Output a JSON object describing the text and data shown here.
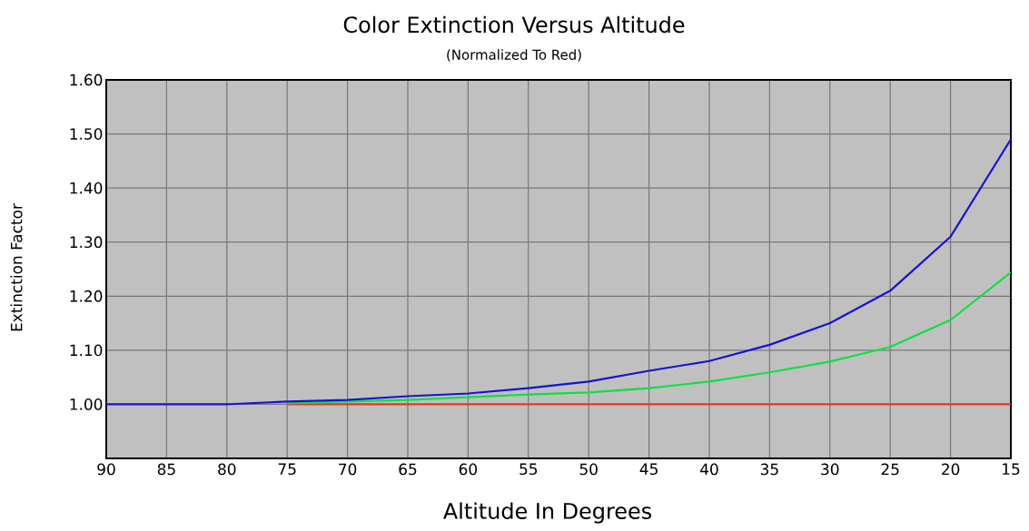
{
  "chart_data": {
    "type": "line",
    "title": "Color Extinction Versus Altitude",
    "subtitle": "(Normalized To Red)",
    "xlabel": "Altitude In Degrees",
    "ylabel": "Extinction Factor",
    "x": [
      90,
      85,
      80,
      75,
      70,
      65,
      60,
      55,
      50,
      45,
      40,
      35,
      30,
      25,
      20,
      15
    ],
    "series": [
      {
        "color": "#e83a20",
        "values": [
          null,
          null,
          null,
          1.0,
          1.0,
          1.0,
          1.0,
          1.0,
          1.0,
          1.0,
          1.0,
          1.0,
          1.0,
          1.0,
          1.0,
          1.0
        ]
      },
      {
        "color": "#10e040",
        "values": [
          null,
          null,
          null,
          1.002,
          1.005,
          1.008,
          1.013,
          1.018,
          1.022,
          1.03,
          1.042,
          1.059,
          1.079,
          1.106,
          1.156,
          1.244
        ]
      },
      {
        "color": "#1414d0",
        "values": [
          1.0,
          1.0,
          1.0,
          1.005,
          1.008,
          1.015,
          1.02,
          1.03,
          1.042,
          1.062,
          1.08,
          1.11,
          1.15,
          1.21,
          1.31,
          1.49
        ]
      }
    ],
    "xlim": [
      90,
      15
    ],
    "xticks": [
      90,
      85,
      80,
      75,
      70,
      65,
      60,
      55,
      50,
      45,
      40,
      35,
      30,
      25,
      20,
      15
    ],
    "ylim": [
      0.9,
      1.6
    ],
    "yticks": [
      {
        "value": 0.9,
        "label": null
      },
      {
        "value": 1.0,
        "label": "1.00"
      },
      {
        "value": 1.1,
        "label": "1.10"
      },
      {
        "value": 1.2,
        "label": "1.20"
      },
      {
        "value": 1.3,
        "label": "1.30"
      },
      {
        "value": 1.4,
        "label": "1.40"
      },
      {
        "value": 1.5,
        "label": "1.50"
      },
      {
        "value": 1.6,
        "label": "1.60"
      }
    ],
    "grid": true,
    "marker": "none",
    "line_style": "solid"
  }
}
